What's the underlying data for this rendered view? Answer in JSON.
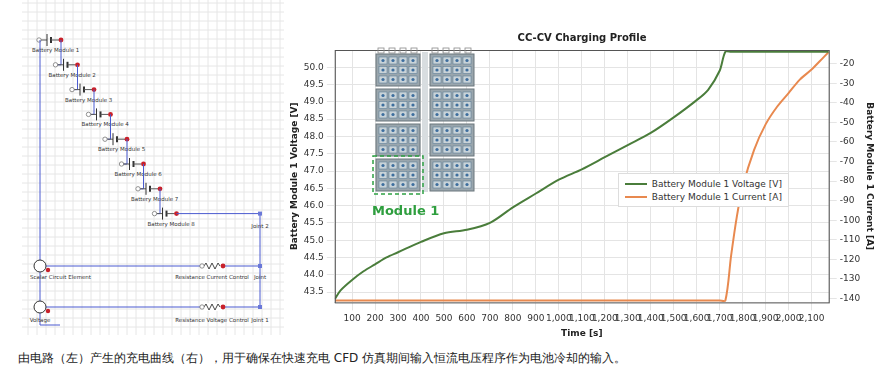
{
  "chart_data": {
    "type": "line",
    "title": "CC-CV Charging Profile",
    "x_label": "Time [s]",
    "y_label": "Battery Module 1 Voltage [V]",
    "y2_label": "Battery Module 1 Current [A]",
    "x": [
      25,
      50,
      100,
      150,
      200,
      250,
      300,
      400,
      500,
      600,
      700,
      800,
      900,
      1000,
      1100,
      1200,
      1300,
      1400,
      1500,
      1600,
      1650,
      1700,
      1725,
      1750,
      1775,
      1800,
      1850,
      1900,
      1950,
      2000,
      2050,
      2100,
      2150,
      2175
    ],
    "series": [
      {
        "name": "Battery Module 1 Voltage [V]",
        "color": "#4a7d3b",
        "axis": "y",
        "values": [
          43.3,
          43.55,
          43.85,
          44.1,
          44.3,
          44.5,
          44.65,
          44.95,
          45.2,
          45.3,
          45.5,
          45.95,
          46.35,
          46.75,
          47.05,
          47.4,
          47.75,
          48.1,
          48.55,
          49.05,
          49.35,
          49.9,
          50.45,
          50.45,
          50.45,
          50.45,
          50.45,
          50.45,
          50.45,
          50.45,
          50.45,
          50.45,
          50.45,
          50.45
        ]
      },
      {
        "name": "Battery Module 1 Current [A]",
        "color": "#e8894f",
        "axis": "y2",
        "values": [
          -141,
          -141,
          -141,
          -141,
          -141,
          -141,
          -141,
          -141,
          -141,
          -141,
          -141,
          -141,
          -141,
          -141,
          -141,
          -141,
          -141,
          -141,
          -141,
          -141,
          -141,
          -141,
          -141,
          -118,
          -98,
          -83,
          -64,
          -51,
          -42,
          -35,
          -28,
          -23,
          -17,
          -14
        ]
      }
    ],
    "xlim": [
      25,
      2175
    ],
    "xticks": [
      100,
      200,
      300,
      400,
      500,
      600,
      700,
      800,
      900,
      1000,
      1100,
      1200,
      1300,
      1400,
      1500,
      1600,
      1700,
      1800,
      1900,
      2000,
      2100
    ],
    "ylim": [
      43.2,
      50.5
    ],
    "yticks": [
      43.5,
      44,
      44.5,
      45,
      45.5,
      46,
      46.5,
      47,
      47.5,
      48,
      48.5,
      49,
      49.5,
      50
    ],
    "y2lim": [
      -142,
      -13
    ],
    "y2ticks": [
      -140,
      -130,
      -120,
      -110,
      -100,
      -90,
      -80,
      -70,
      -60,
      -50,
      -40,
      -30,
      -20
    ],
    "grid": true,
    "legend": "right",
    "annotations": [
      "Module 1"
    ]
  },
  "diagram": {
    "batteries": [
      "Battery Module 1",
      "Battery Module 2",
      "Battery Module 3",
      "Battery Module 4",
      "Battery Module 5",
      "Battery Module 6",
      "Battery Module 7",
      "Battery Module 8"
    ],
    "joint_top": "Joint 2",
    "current_branch": {
      "source": "Scalar Circuit Element",
      "resistor": "Resistance Current Control",
      "joint": "Joint"
    },
    "voltage_branch": {
      "source": "Voltage",
      "resistor": "Resistance Voltage Control",
      "joint": "Joint 1"
    }
  },
  "caption": "由电路（左）产生的充电曲线（右），用于确保在快速充电 CFD 仿真期间输入恒流电压程序作为电池冷却的输入。"
}
